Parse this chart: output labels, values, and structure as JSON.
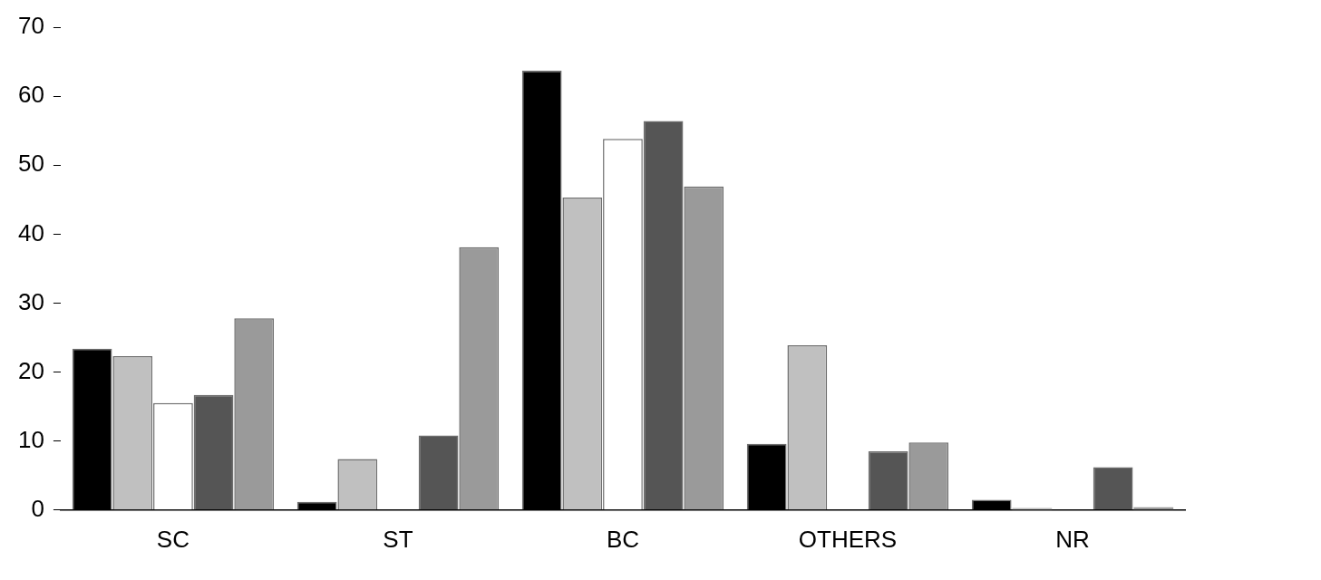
{
  "chart_data": {
    "type": "bar",
    "categories": [
      "SC",
      "ST",
      "BC",
      "OTHERS",
      "NR"
    ],
    "series": [
      {
        "color": "#000000",
        "values": [
          23.4,
          1.2,
          63.7,
          9.6,
          1.5
        ]
      },
      {
        "color": "#c0c0c0",
        "values": [
          22.3,
          7.4,
          45.3,
          23.9,
          0.3
        ]
      },
      {
        "color": "#ffffff",
        "values": [
          15.5,
          0,
          53.8,
          0,
          0
        ]
      },
      {
        "color": "#555555",
        "values": [
          16.7,
          10.8,
          56.4,
          8.5,
          6.2
        ]
      },
      {
        "color": "#9a9a9a",
        "values": [
          27.8,
          38.1,
          46.9,
          9.8,
          0.4
        ]
      }
    ],
    "ylim": [
      0,
      70
    ],
    "yticks": [
      0,
      10,
      20,
      30,
      40,
      50,
      60,
      70
    ],
    "grid": false,
    "legend": false
  }
}
